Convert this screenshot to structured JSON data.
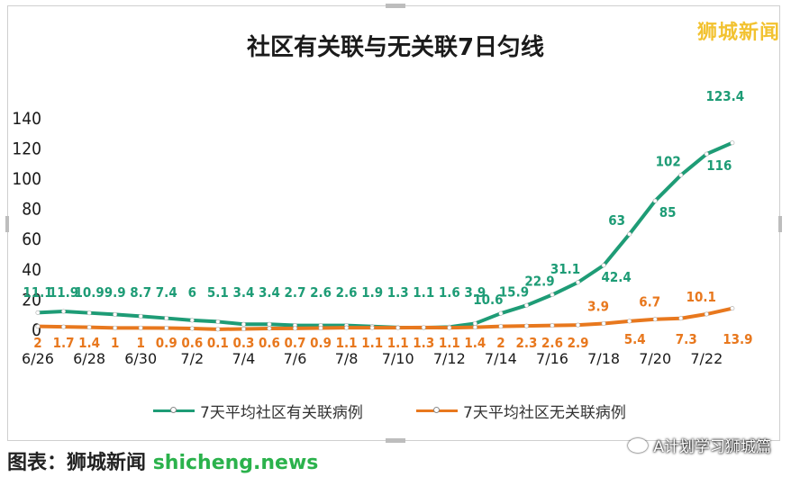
{
  "brand": "狮城新闻",
  "chart_data": {
    "type": "line",
    "title": "社区有关联与无关联7日匀线",
    "xlabel": "",
    "ylabel": "",
    "ylim": [
      0,
      140
    ],
    "yticks": [
      0,
      20,
      40,
      60,
      80,
      100,
      120,
      140
    ],
    "x": [
      "6/26",
      "6/27",
      "6/28",
      "6/29",
      "6/30",
      "7/1",
      "7/2",
      "7/3",
      "7/4",
      "7/5",
      "7/6",
      "7/7",
      "7/8",
      "7/9",
      "7/10",
      "7/11",
      "7/12",
      "7/13",
      "7/14",
      "7/15",
      "7/16",
      "7/17",
      "7/18",
      "7/19",
      "7/20",
      "7/21",
      "7/22",
      "7/23"
    ],
    "xticklabels": [
      "6/26",
      "6/28",
      "6/30",
      "7/2",
      "7/4",
      "7/6",
      "7/8",
      "7/10",
      "7/12",
      "7/14",
      "7/16",
      "7/18",
      "7/20",
      "7/22"
    ],
    "series": [
      {
        "name": "7天平均社区有关联病例",
        "color": "#1e9c76",
        "values": [
          11.1,
          11.9,
          10.9,
          9.9,
          8.7,
          7.4,
          6,
          5.1,
          3.4,
          3.4,
          2.7,
          2.6,
          2.6,
          1.9,
          1.3,
          1.1,
          1.6,
          3.9,
          10.6,
          15.9,
          22.9,
          31.1,
          42.4,
          63,
          85,
          102,
          116,
          123.4
        ],
        "labels": [
          "11.1",
          "11.9",
          "10.9",
          "9.9",
          "8.7",
          "7.4",
          "6",
          "5.1",
          "3.4",
          "3.4",
          "2.7",
          "2.6",
          "2.6",
          "1.9",
          "1.3",
          "1.1",
          "1.6",
          "3.9",
          "10.6",
          "15.9",
          "22.9",
          "31.1",
          "42.4",
          "63",
          "85",
          "102",
          "116",
          "123.4"
        ]
      },
      {
        "name": "7天平均社区无关联病例",
        "color": "#e8781e",
        "values": [
          2,
          1.7,
          1.4,
          1,
          1,
          0.9,
          0.6,
          0.1,
          0.3,
          0.6,
          0.7,
          0.9,
          1.1,
          1.1,
          1.1,
          1.3,
          1.1,
          1.4,
          2,
          2.3,
          2.6,
          2.9,
          3.9,
          5.4,
          6.7,
          7.3,
          10.1,
          13.9
        ],
        "labels": [
          "2",
          "1.7",
          "1.4",
          "1",
          "1",
          "0.9",
          "0.6",
          "0.1",
          "0.3",
          "0.6",
          "0.7",
          "0.9",
          "1.1",
          "1.1",
          "1.1",
          "1.3",
          "1.1",
          "1.4",
          "2",
          "2.3",
          "2.6",
          "2.9",
          "3.9",
          "5.4",
          "6.7",
          "7.3",
          "10.1",
          "13.9"
        ]
      }
    ],
    "grid": false,
    "legend_position": "bottom"
  },
  "footer": {
    "left_dark": "图表：",
    "left_mid": "狮城新闻",
    "left_green": "shicheng.news",
    "right": "A计划学习狮城篇"
  }
}
